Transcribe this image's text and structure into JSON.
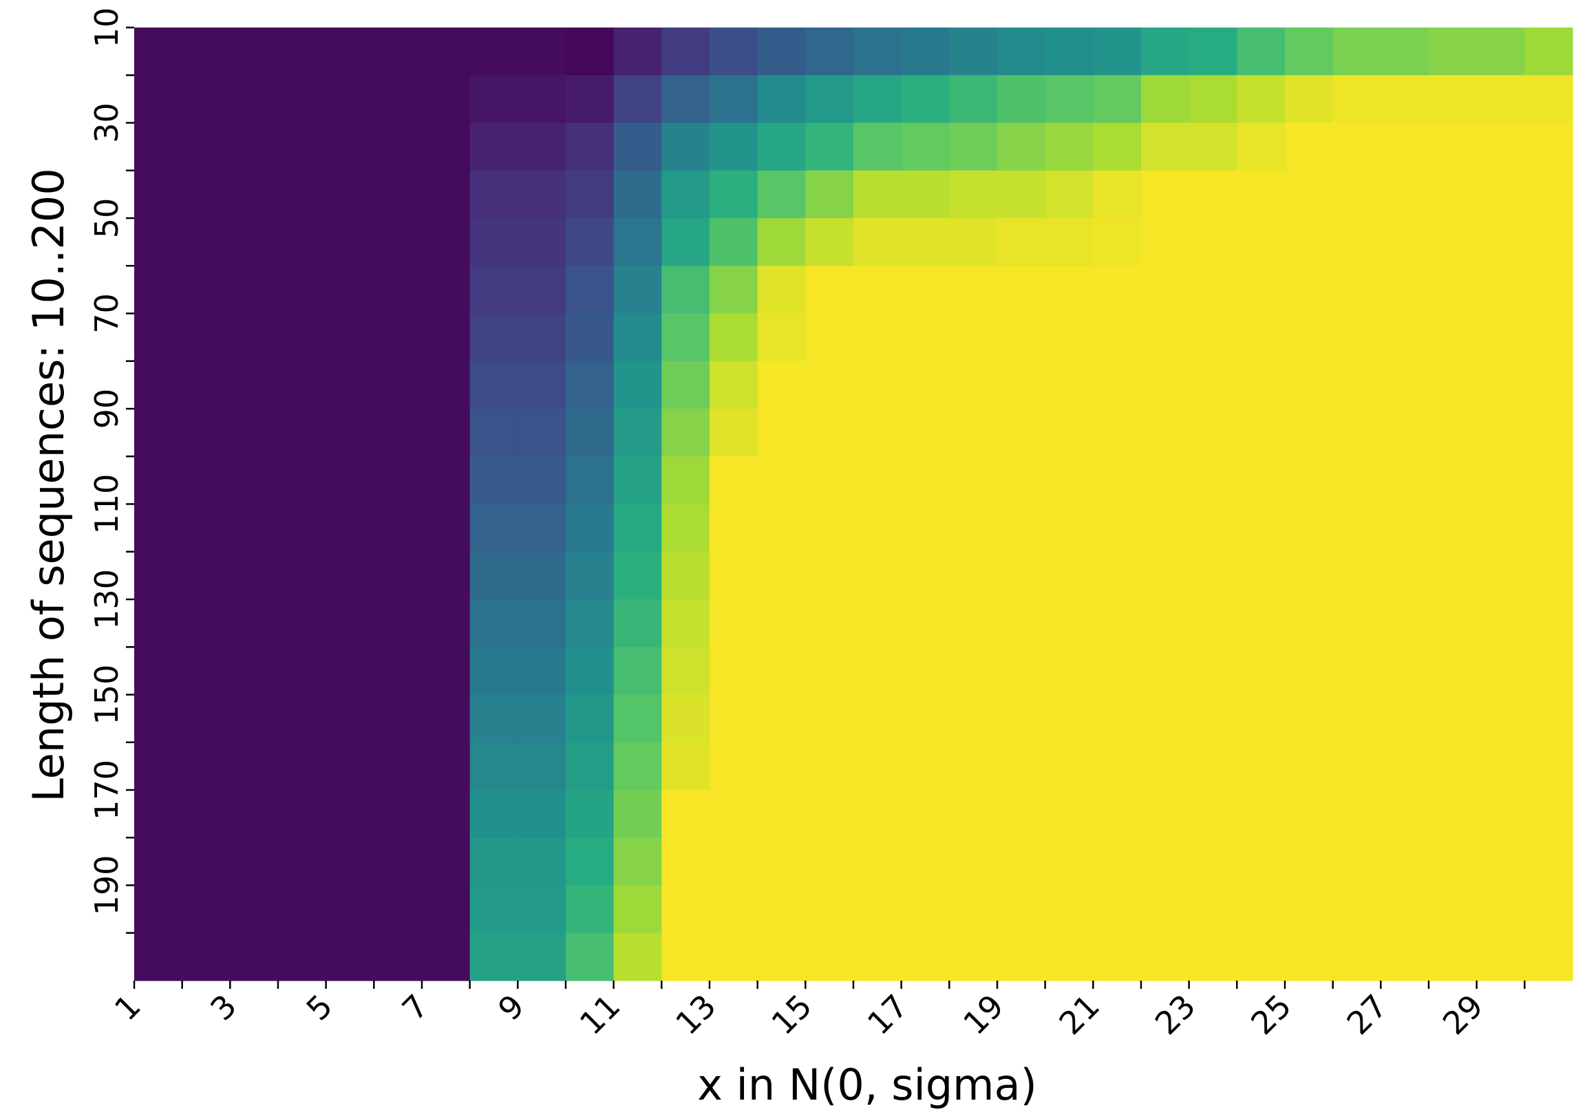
{
  "chart_data": {
    "type": "heatmap",
    "title": "",
    "xlabel": "x in N(0, sigma)",
    "ylabel": "Length of sequences: 10..200",
    "x": [
      1,
      2,
      3,
      4,
      5,
      6,
      7,
      8,
      9,
      10,
      11,
      12,
      13,
      14,
      15,
      16,
      17,
      18,
      19,
      20,
      21,
      22,
      23,
      24,
      25,
      26,
      27,
      28,
      29,
      30
    ],
    "y": [
      10,
      20,
      30,
      40,
      50,
      60,
      70,
      80,
      90,
      100,
      110,
      120,
      130,
      140,
      150,
      160,
      170,
      180,
      190,
      200
    ],
    "x_tick_labels": [
      "1",
      "3",
      "5",
      "7",
      "9",
      "11",
      "13",
      "15",
      "17",
      "19",
      "21",
      "23",
      "25",
      "27",
      "29"
    ],
    "y_tick_labels": [
      "10",
      "30",
      "50",
      "70",
      "90",
      "110",
      "130",
      "150",
      "170",
      "190"
    ],
    "colormap": "viridis",
    "vrange": [
      0,
      1
    ],
    "colorbar": false,
    "grid": false,
    "values": [
      [
        0.03,
        0.03,
        0.03,
        0.03,
        0.03,
        0.03,
        0.03,
        0.03,
        0.03,
        0.02,
        0.1,
        0.18,
        0.24,
        0.3,
        0.34,
        0.38,
        0.41,
        0.45,
        0.48,
        0.5,
        0.52,
        0.6,
        0.62,
        0.7,
        0.76,
        0.8,
        0.8,
        0.82,
        0.82,
        0.86
      ],
      [
        0.03,
        0.03,
        0.03,
        0.03,
        0.03,
        0.03,
        0.03,
        0.06,
        0.06,
        0.08,
        0.2,
        0.32,
        0.38,
        0.48,
        0.54,
        0.6,
        0.64,
        0.68,
        0.72,
        0.74,
        0.76,
        0.86,
        0.88,
        0.92,
        0.96,
        0.98,
        0.98,
        0.98,
        0.98,
        0.98
      ],
      [
        0.03,
        0.03,
        0.03,
        0.03,
        0.03,
        0.03,
        0.03,
        0.1,
        0.1,
        0.14,
        0.3,
        0.45,
        0.52,
        0.6,
        0.66,
        0.74,
        0.76,
        0.78,
        0.82,
        0.85,
        0.88,
        0.94,
        0.94,
        0.97,
        0.99,
        0.99,
        0.99,
        0.99,
        0.99,
        0.99
      ],
      [
        0.03,
        0.03,
        0.03,
        0.03,
        0.03,
        0.03,
        0.03,
        0.14,
        0.14,
        0.18,
        0.36,
        0.54,
        0.64,
        0.74,
        0.82,
        0.9,
        0.9,
        0.92,
        0.92,
        0.94,
        0.97,
        0.99,
        0.99,
        0.99,
        0.99,
        0.99,
        0.99,
        0.99,
        0.99,
        0.99
      ],
      [
        0.03,
        0.03,
        0.03,
        0.03,
        0.03,
        0.03,
        0.03,
        0.16,
        0.16,
        0.22,
        0.4,
        0.6,
        0.72,
        0.86,
        0.92,
        0.96,
        0.96,
        0.96,
        0.97,
        0.97,
        0.98,
        0.99,
        0.99,
        0.99,
        0.99,
        0.99,
        0.99,
        0.99,
        0.99,
        0.99
      ],
      [
        0.03,
        0.03,
        0.03,
        0.03,
        0.03,
        0.03,
        0.03,
        0.18,
        0.18,
        0.26,
        0.44,
        0.7,
        0.82,
        0.96,
        0.99,
        0.99,
        0.99,
        0.99,
        0.99,
        0.99,
        0.99,
        0.99,
        0.99,
        0.99,
        0.99,
        0.99,
        0.99,
        0.99,
        0.99,
        0.99
      ],
      [
        0.03,
        0.03,
        0.03,
        0.03,
        0.03,
        0.03,
        0.03,
        0.2,
        0.2,
        0.28,
        0.48,
        0.74,
        0.88,
        0.97,
        0.99,
        0.99,
        0.99,
        0.99,
        0.99,
        0.99,
        0.99,
        0.99,
        0.99,
        0.99,
        0.99,
        0.99,
        0.99,
        0.99,
        0.99,
        0.99
      ],
      [
        0.03,
        0.03,
        0.03,
        0.03,
        0.03,
        0.03,
        0.03,
        0.23,
        0.23,
        0.32,
        0.52,
        0.78,
        0.93,
        0.99,
        0.99,
        0.99,
        0.99,
        0.99,
        0.99,
        0.99,
        0.99,
        0.99,
        0.99,
        0.99,
        0.99,
        0.99,
        0.99,
        0.99,
        0.99,
        0.99
      ],
      [
        0.03,
        0.03,
        0.03,
        0.03,
        0.03,
        0.03,
        0.03,
        0.26,
        0.26,
        0.35,
        0.55,
        0.82,
        0.96,
        0.99,
        0.99,
        0.99,
        0.99,
        0.99,
        0.99,
        0.99,
        0.99,
        0.99,
        0.99,
        0.99,
        0.99,
        0.99,
        0.99,
        0.99,
        0.99,
        0.99
      ],
      [
        0.03,
        0.03,
        0.03,
        0.03,
        0.03,
        0.03,
        0.03,
        0.29,
        0.29,
        0.38,
        0.58,
        0.86,
        0.99,
        0.99,
        0.99,
        0.99,
        0.99,
        0.99,
        0.99,
        0.99,
        0.99,
        0.99,
        0.99,
        0.99,
        0.99,
        0.99,
        0.99,
        0.99,
        0.99,
        0.99
      ],
      [
        0.03,
        0.03,
        0.03,
        0.03,
        0.03,
        0.03,
        0.03,
        0.32,
        0.32,
        0.41,
        0.61,
        0.88,
        0.99,
        0.99,
        0.99,
        0.99,
        0.99,
        0.99,
        0.99,
        0.99,
        0.99,
        0.99,
        0.99,
        0.99,
        0.99,
        0.99,
        0.99,
        0.99,
        0.99,
        0.99
      ],
      [
        0.03,
        0.03,
        0.03,
        0.03,
        0.03,
        0.03,
        0.03,
        0.35,
        0.35,
        0.44,
        0.64,
        0.9,
        0.99,
        0.99,
        0.99,
        0.99,
        0.99,
        0.99,
        0.99,
        0.99,
        0.99,
        0.99,
        0.99,
        0.99,
        0.99,
        0.99,
        0.99,
        0.99,
        0.99,
        0.99
      ],
      [
        0.03,
        0.03,
        0.03,
        0.03,
        0.03,
        0.03,
        0.03,
        0.38,
        0.38,
        0.47,
        0.67,
        0.92,
        0.99,
        0.99,
        0.99,
        0.99,
        0.99,
        0.99,
        0.99,
        0.99,
        0.99,
        0.99,
        0.99,
        0.99,
        0.99,
        0.99,
        0.99,
        0.99,
        0.99,
        0.99
      ],
      [
        0.03,
        0.03,
        0.03,
        0.03,
        0.03,
        0.03,
        0.03,
        0.41,
        0.41,
        0.5,
        0.7,
        0.93,
        0.99,
        0.99,
        0.99,
        0.99,
        0.99,
        0.99,
        0.99,
        0.99,
        0.99,
        0.99,
        0.99,
        0.99,
        0.99,
        0.99,
        0.99,
        0.99,
        0.99,
        0.99
      ],
      [
        0.03,
        0.03,
        0.03,
        0.03,
        0.03,
        0.03,
        0.03,
        0.44,
        0.44,
        0.53,
        0.73,
        0.95,
        0.99,
        0.99,
        0.99,
        0.99,
        0.99,
        0.99,
        0.99,
        0.99,
        0.99,
        0.99,
        0.99,
        0.99,
        0.99,
        0.99,
        0.99,
        0.99,
        0.99,
        0.99
      ],
      [
        0.03,
        0.03,
        0.03,
        0.03,
        0.03,
        0.03,
        0.03,
        0.47,
        0.47,
        0.56,
        0.76,
        0.96,
        0.99,
        0.99,
        0.99,
        0.99,
        0.99,
        0.99,
        0.99,
        0.99,
        0.99,
        0.99,
        0.99,
        0.99,
        0.99,
        0.99,
        0.99,
        0.99,
        0.99,
        0.99
      ],
      [
        0.03,
        0.03,
        0.03,
        0.03,
        0.03,
        0.03,
        0.03,
        0.5,
        0.5,
        0.59,
        0.79,
        0.99,
        0.99,
        0.99,
        0.99,
        0.99,
        0.99,
        0.99,
        0.99,
        0.99,
        0.99,
        0.99,
        0.99,
        0.99,
        0.99,
        0.99,
        0.99,
        0.99,
        0.99,
        0.99
      ],
      [
        0.03,
        0.03,
        0.03,
        0.03,
        0.03,
        0.03,
        0.03,
        0.53,
        0.53,
        0.62,
        0.82,
        0.99,
        0.99,
        0.99,
        0.99,
        0.99,
        0.99,
        0.99,
        0.99,
        0.99,
        0.99,
        0.99,
        0.99,
        0.99,
        0.99,
        0.99,
        0.99,
        0.99,
        0.99,
        0.99
      ],
      [
        0.03,
        0.03,
        0.03,
        0.03,
        0.03,
        0.03,
        0.03,
        0.55,
        0.55,
        0.66,
        0.86,
        0.99,
        0.99,
        0.99,
        0.99,
        0.99,
        0.99,
        0.99,
        0.99,
        0.99,
        0.99,
        0.99,
        0.99,
        0.99,
        0.99,
        0.99,
        0.99,
        0.99,
        0.99,
        0.99
      ],
      [
        0.03,
        0.03,
        0.03,
        0.03,
        0.03,
        0.03,
        0.03,
        0.58,
        0.58,
        0.7,
        0.9,
        0.99,
        0.99,
        0.99,
        0.99,
        0.99,
        0.99,
        0.99,
        0.99,
        0.99,
        0.99,
        0.99,
        0.99,
        0.99,
        0.99,
        0.99,
        0.99,
        0.99,
        0.99,
        0.99
      ]
    ]
  }
}
